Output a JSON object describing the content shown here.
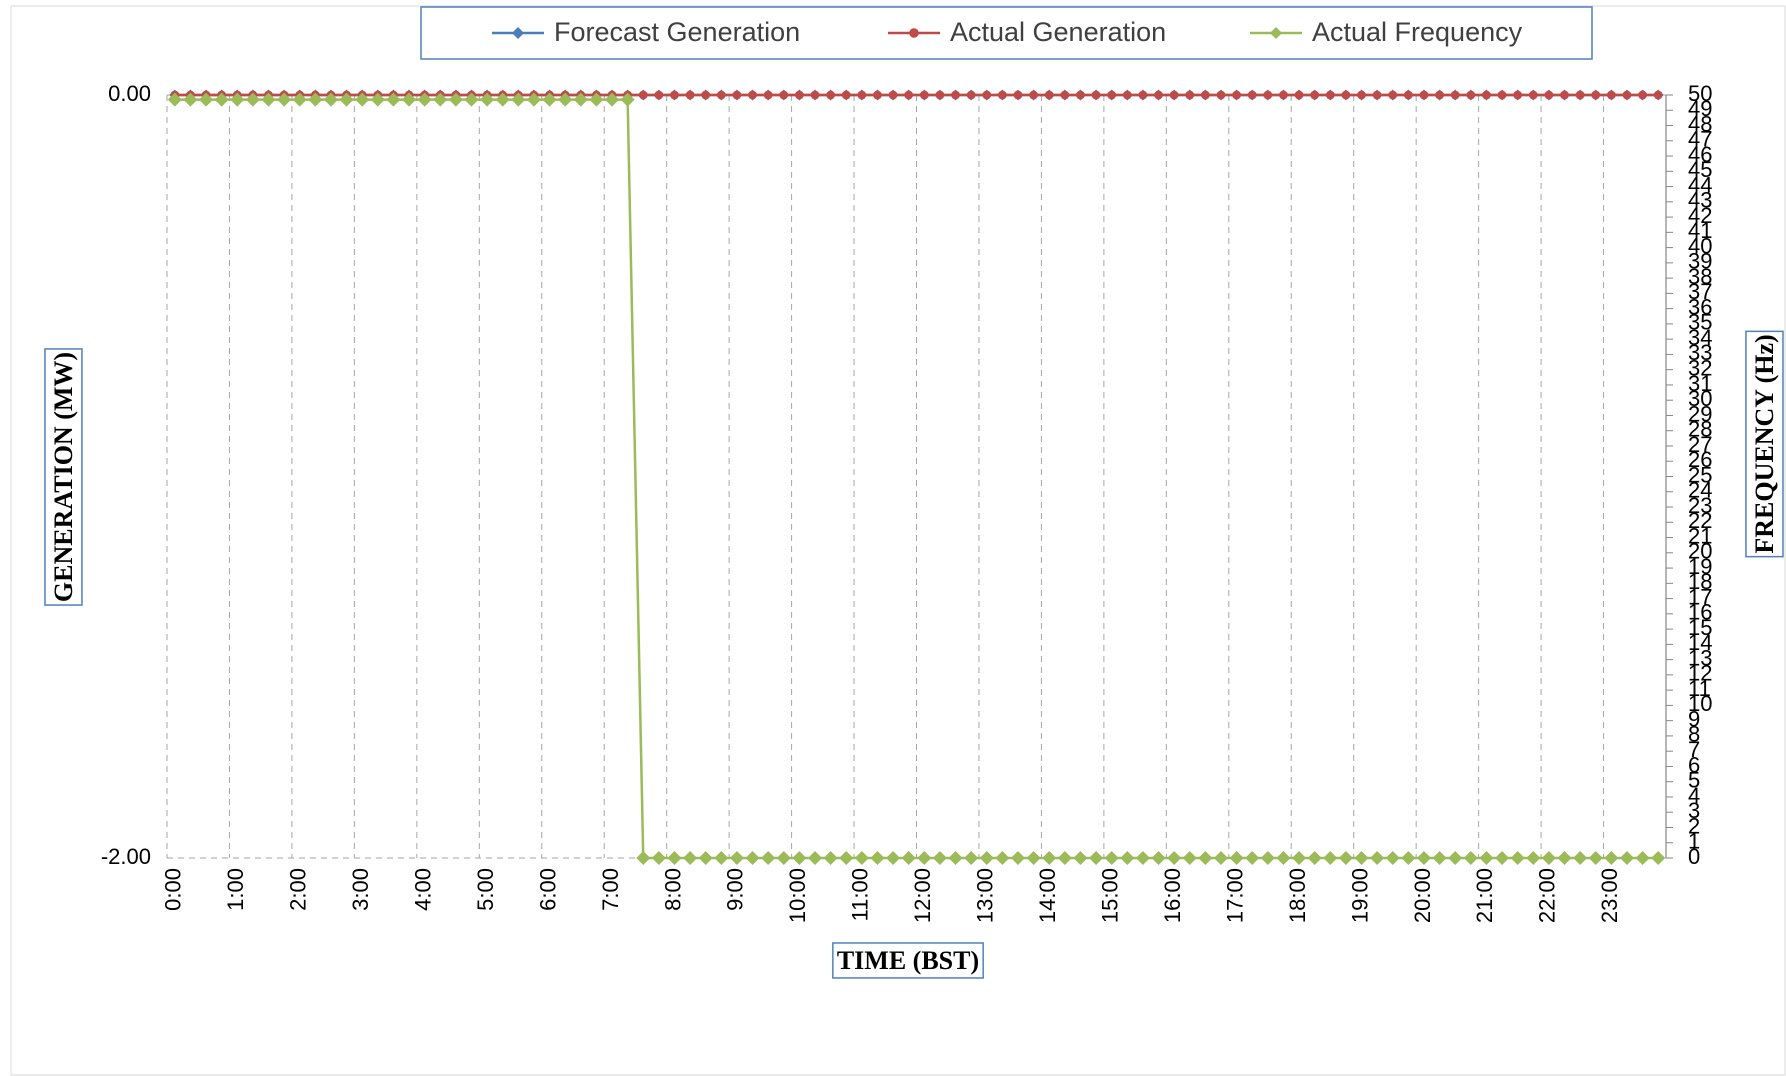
{
  "chart_data": {
    "type": "line",
    "y_label": "GENERATION (MW)",
    "y2_label": "FREQUENCY (Hz)",
    "x_label": "TIME (BST)",
    "categories": [
      "0:00",
      null,
      null,
      null,
      "1:00",
      null,
      null,
      null,
      "2:00",
      null,
      null,
      null,
      "3:00",
      null,
      null,
      null,
      "4:00",
      null,
      null,
      null,
      "5:00",
      null,
      null,
      null,
      "6:00",
      null,
      null,
      null,
      "7:00",
      null,
      null,
      null,
      "8:00",
      null,
      null,
      null,
      "9:00",
      null,
      null,
      null,
      "10:00",
      null,
      null,
      null,
      "11:00",
      null,
      null,
      null,
      "12:00",
      null,
      null,
      null,
      "13:00",
      null,
      null,
      null,
      "14:00",
      null,
      null,
      null,
      "15:00",
      null,
      null,
      null,
      "16:00",
      null,
      null,
      null,
      "17:00",
      null,
      null,
      null,
      "18:00",
      null,
      null,
      null,
      "19:00",
      null,
      null,
      null,
      "20:00",
      null,
      null,
      null,
      "21:00",
      null,
      null,
      null,
      "22:00",
      null,
      null,
      null,
      "23:00",
      null,
      null,
      null
    ],
    "series": [
      {
        "name": "Forecast Generation",
        "color": "#4a7ebb",
        "marker": "diamond",
        "values": [
          0,
          0,
          0,
          0,
          0,
          0,
          0,
          0,
          0,
          0,
          0,
          0,
          0,
          0,
          0,
          0,
          0,
          0,
          0,
          0,
          0,
          0,
          0,
          0,
          0,
          0,
          0,
          0,
          0,
          0,
          0,
          0,
          0,
          0,
          0,
          0,
          0,
          0,
          0,
          0,
          0,
          0,
          0,
          0,
          0,
          0,
          0,
          0,
          0,
          0,
          0,
          0,
          0,
          0,
          0,
          0,
          0,
          0,
          0,
          0,
          0,
          0,
          0,
          0,
          0,
          0,
          0,
          0,
          0,
          0,
          0,
          0,
          0,
          0,
          0,
          0,
          0,
          0,
          0,
          0,
          0,
          0,
          0,
          0,
          0,
          0,
          0,
          0,
          0,
          0,
          0,
          0,
          0,
          0,
          0,
          0
        ]
      },
      {
        "name": "Actual Generation",
        "color": "#be4b48",
        "marker": "circle",
        "values": [
          0,
          0,
          0,
          0,
          0,
          0,
          0,
          0,
          0,
          0,
          0,
          0,
          0,
          0,
          0,
          0,
          0,
          0,
          0,
          0,
          0,
          0,
          0,
          0,
          0,
          0,
          0,
          0,
          0,
          0,
          0,
          0,
          0,
          0,
          0,
          0,
          0,
          0,
          0,
          0,
          0,
          0,
          0,
          0,
          0,
          0,
          0,
          0,
          0,
          0,
          0,
          0,
          0,
          0,
          0,
          0,
          0,
          0,
          0,
          0,
          0,
          0,
          0,
          0,
          0,
          0,
          0,
          0,
          0,
          0,
          0,
          0,
          0,
          0,
          0,
          0,
          0,
          0,
          0,
          0,
          0,
          0,
          0,
          0,
          0,
          0,
          0,
          0,
          0,
          0,
          0,
          0,
          0,
          0,
          0,
          0
        ]
      },
      {
        "name": "Actual Frequency",
        "color": "#9bbb59",
        "marker": "diamond",
        "axis": "y2",
        "values": [
          49.7,
          49.7,
          49.7,
          49.7,
          49.7,
          49.7,
          49.7,
          49.7,
          49.7,
          49.7,
          49.7,
          49.7,
          49.7,
          49.7,
          49.7,
          49.7,
          49.7,
          49.7,
          49.7,
          49.7,
          49.7,
          49.7,
          49.7,
          49.7,
          49.7,
          49.7,
          49.7,
          49.7,
          49.7,
          49.7,
          0,
          0,
          0,
          0,
          0,
          0,
          0,
          0,
          0,
          0,
          0,
          0,
          0,
          0,
          0,
          0,
          0,
          0,
          0,
          0,
          0,
          0,
          0,
          0,
          0,
          0,
          0,
          0,
          0,
          0,
          0,
          0,
          0,
          0,
          0,
          0,
          0,
          0,
          0,
          0,
          0,
          0,
          0,
          0,
          0,
          0,
          0,
          0,
          0,
          0,
          0,
          0,
          0,
          0,
          0,
          0,
          0,
          0,
          0,
          0,
          0,
          0,
          0,
          0,
          0,
          0
        ]
      }
    ],
    "ylim": [
      -2,
      0
    ],
    "yticks": [
      {
        "value": -2,
        "label": "-2.00"
      },
      {
        "value": 0,
        "label": "0.00"
      }
    ],
    "y2lim": [
      0,
      50
    ],
    "y2ticks": [
      0,
      1,
      2,
      3,
      4,
      5,
      6,
      7,
      8,
      9,
      10,
      11,
      12,
      13,
      14,
      15,
      16,
      17,
      18,
      19,
      20,
      21,
      22,
      23,
      24,
      25,
      26,
      27,
      28,
      29,
      30,
      31,
      32,
      33,
      34,
      35,
      36,
      37,
      38,
      39,
      40,
      41,
      42,
      43,
      44,
      45,
      46,
      47,
      48,
      49,
      50
    ],
    "grid": true,
    "legend": "top"
  }
}
